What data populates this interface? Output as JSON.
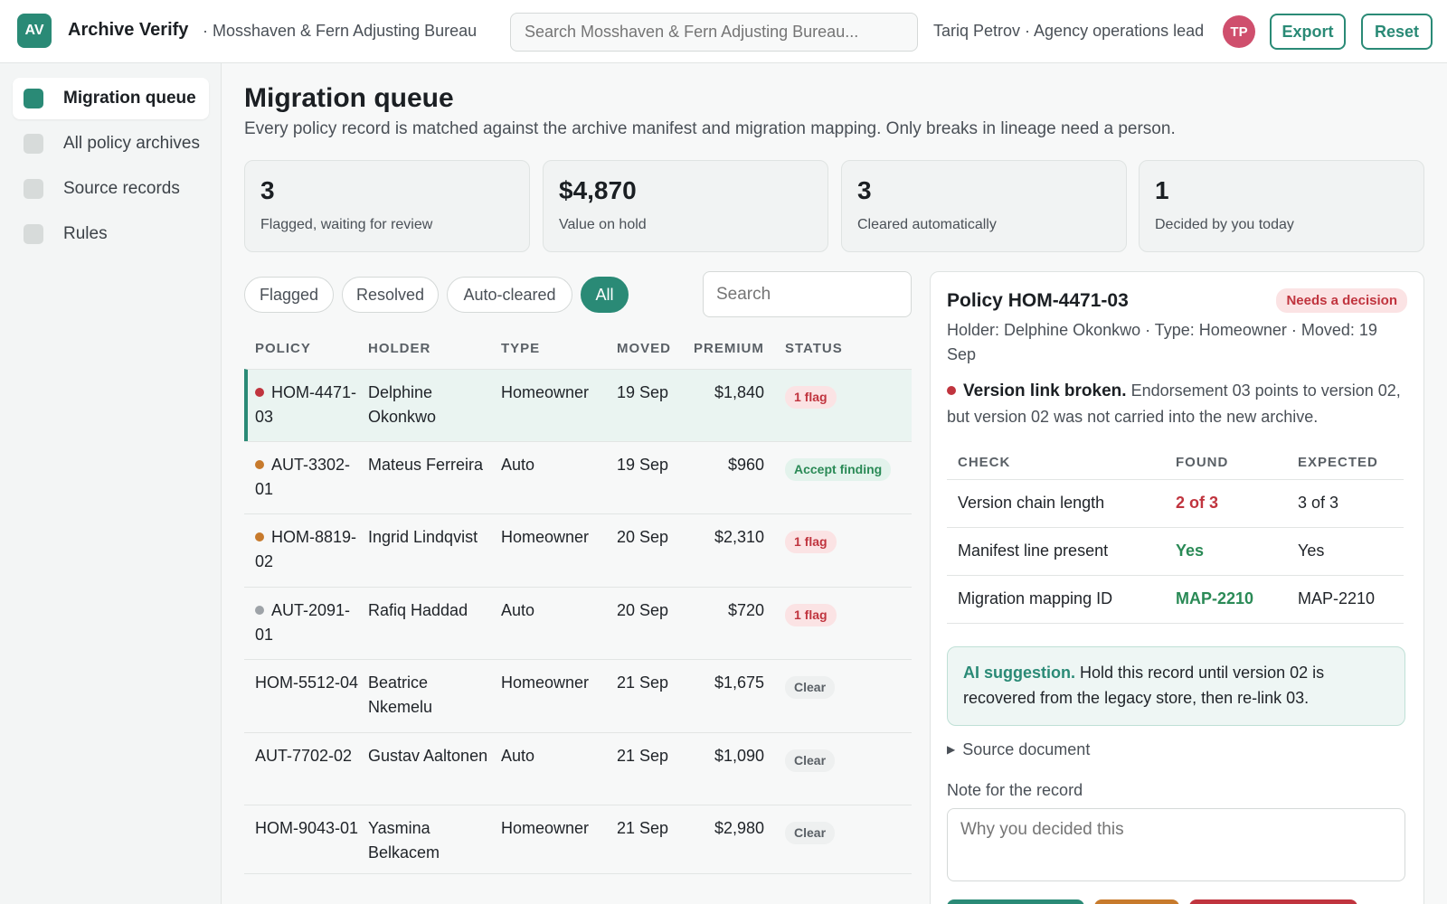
{
  "app": {
    "logo": "AV",
    "name": "Archive Verify",
    "org": "· Mosshaven & Fern Adjusting Bureau",
    "search_placeholder": "Search Mosshaven & Fern Adjusting Bureau...",
    "user": "Tariq Petrov · Agency operations lead",
    "avatar": "TP",
    "export_label": "Export",
    "reset_label": "Reset"
  },
  "sidebar": {
    "items": [
      {
        "label": "Migration queue",
        "active": true
      },
      {
        "label": "All policy archives",
        "active": false
      },
      {
        "label": "Source records",
        "active": false
      },
      {
        "label": "Rules",
        "active": false
      }
    ]
  },
  "page": {
    "title": "Migration queue",
    "subtitle": "Every policy record is matched against the archive manifest and migration mapping. Only breaks in lineage need a person."
  },
  "stats": [
    {
      "value": "3",
      "label": "Flagged, waiting for review"
    },
    {
      "value": "$4,870",
      "label": "Value on hold"
    },
    {
      "value": "3",
      "label": "Cleared automatically"
    },
    {
      "value": "1",
      "label": "Decided by you today"
    }
  ],
  "filters": {
    "pills": [
      "Flagged",
      "Resolved",
      "Auto-cleared",
      "All"
    ],
    "active": "All",
    "search_placeholder": "Search"
  },
  "table": {
    "headers": [
      "POLICY",
      "HOLDER",
      "TYPE",
      "MOVED",
      "PREMIUM",
      "STATUS"
    ],
    "rows": [
      {
        "policy": "HOM-4471-03",
        "holder": "Delphine Okonkwo",
        "type": "Homeowner",
        "moved": "19 Sep",
        "premium": "$1,840",
        "status": "1 flag",
        "status_kind": "flag",
        "dot": "#c0343e",
        "selected": true
      },
      {
        "policy": "AUT-3302-01",
        "holder": "Mateus Ferreira",
        "type": "Auto",
        "moved": "19 Sep",
        "premium": "$960",
        "status": "Accept finding",
        "status_kind": "accept",
        "dot": "#c77a2c",
        "selected": false
      },
      {
        "policy": "HOM-8819-02",
        "holder": "Ingrid Lindqvist",
        "type": "Homeowner",
        "moved": "20 Sep",
        "premium": "$2,310",
        "status": "1 flag",
        "status_kind": "flag",
        "dot": "#c77a2c",
        "selected": false
      },
      {
        "policy": "AUT-2091-01",
        "holder": "Rafiq Haddad",
        "type": "Auto",
        "moved": "20 Sep",
        "premium": "$720",
        "status": "1 flag",
        "status_kind": "flag",
        "dot": "#9ea3a8",
        "selected": false
      },
      {
        "policy": "HOM-5512-04",
        "holder": "Beatrice Nkemelu",
        "type": "Homeowner",
        "moved": "21 Sep",
        "premium": "$1,675",
        "status": "Clear",
        "status_kind": "clear",
        "dot": "",
        "selected": false
      },
      {
        "policy": "AUT-7702-02",
        "holder": "Gustav Aaltonen",
        "type": "Auto",
        "moved": "21 Sep",
        "premium": "$1,090",
        "status": "Clear",
        "status_kind": "clear",
        "dot": "",
        "selected": false
      },
      {
        "policy": "HOM-9043-01",
        "holder": "Yasmina Belkacem",
        "type": "Homeowner",
        "moved": "21 Sep",
        "premium": "$2,980",
        "status": "Clear",
        "status_kind": "clear",
        "dot": "",
        "selected": false
      }
    ]
  },
  "detail": {
    "title": "Policy HOM-4471-03",
    "badge": "Needs a decision",
    "meta": "Holder: Delphine Okonkwo · Type: Homeowner · Moved: 19 Sep",
    "issue_title": "Version link broken.",
    "issue_text": "Endorsement 03 points to version 02, but version 02 was not carried into the new archive.",
    "check_headers": [
      "CHECK",
      "FOUND",
      "EXPECTED"
    ],
    "checks": [
      {
        "check": "Version chain length",
        "found": "2 of 3",
        "expected": "3 of 3",
        "ok": false
      },
      {
        "check": "Manifest line present",
        "found": "Yes",
        "expected": "Yes",
        "ok": true
      },
      {
        "check": "Migration mapping ID",
        "found": "MAP-2210",
        "expected": "MAP-2210",
        "ok": true
      }
    ],
    "ai_label": "AI suggestion.",
    "ai_text": "Hold this record until version 02 is recovered from the legacy store, then re-link 03.",
    "source_doc": "Source document",
    "note_label": "Note for the record",
    "note_placeholder": "Why you decided this"
  },
  "colors": {
    "accent": "#2a8a76",
    "danger": "#c0343e",
    "warning": "#c77a2c",
    "success": "#2a8a56"
  }
}
